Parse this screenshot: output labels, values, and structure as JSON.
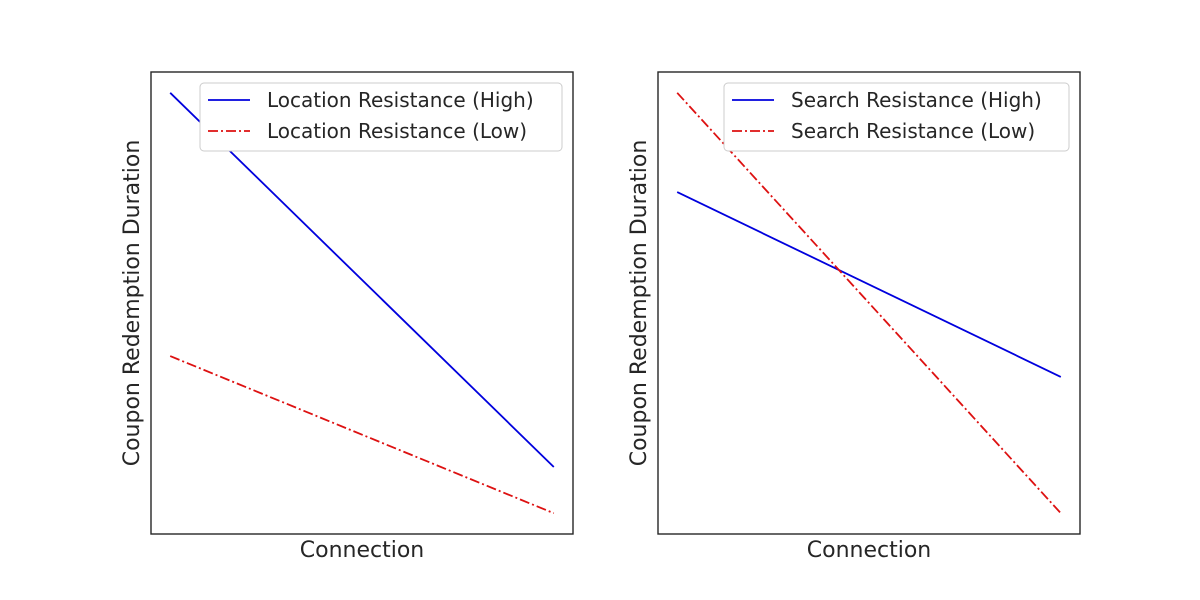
{
  "colors": {
    "high": "#0000dd",
    "low": "#dd1111",
    "axis": "#262626",
    "legend_border": "#cccccc"
  },
  "chart_data": [
    {
      "type": "line",
      "xlabel": "Connection",
      "ylabel": "Coupon Redemption Duration",
      "xticks_shown": false,
      "yticks_shown": false,
      "grid": false,
      "legend_position": "upper-right",
      "x": [
        0,
        1
      ],
      "xlim": [
        -0.05,
        1.05
      ],
      "ylim": [
        0,
        1
      ],
      "series": [
        {
          "name": "Location Resistance (High)",
          "style": "solid",
          "color": "#0000dd",
          "values": [
            0.955,
            0.145
          ]
        },
        {
          "name": "Location Resistance (Low)",
          "style": "dashdot",
          "color": "#dd1111",
          "values": [
            0.385,
            0.045
          ]
        }
      ]
    },
    {
      "type": "line",
      "xlabel": "Connection",
      "ylabel": "Coupon Redemption Duration",
      "xticks_shown": false,
      "yticks_shown": false,
      "grid": false,
      "legend_position": "upper-right",
      "x": [
        0,
        1
      ],
      "xlim": [
        -0.05,
        1.05
      ],
      "ylim": [
        0,
        1
      ],
      "series": [
        {
          "name": "Search Resistance (High)",
          "style": "solid",
          "color": "#0000dd",
          "values": [
            0.74,
            0.34
          ]
        },
        {
          "name": "Search Resistance (Low)",
          "style": "dashdot",
          "color": "#dd1111",
          "values": [
            0.955,
            0.045
          ]
        }
      ]
    }
  ]
}
